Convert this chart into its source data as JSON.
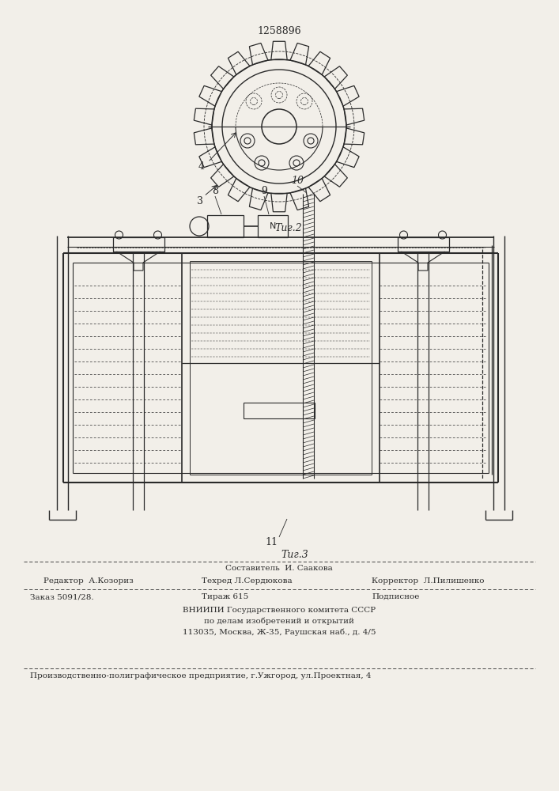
{
  "patent_number": "1258896",
  "fig2_label": "Τиг.2",
  "fig3_label": "Τиг.3",
  "label_3": "3",
  "label_4": "4",
  "label_8": "8",
  "label_9": "9",
  "label_10": "10",
  "label_11": "11",
  "bg_color": "#f2efe9",
  "line_color": "#2a2a2a",
  "footer_line1": "Составитель  И. Саакова",
  "footer_line2_left": "Редактор  А.Козориз",
  "footer_line2_mid": "Техред Л.Сердюкова",
  "footer_line2_right": "Корректор  Л.Пилишенко",
  "footer_line3_left": "Заказ 5091/28.",
  "footer_line3_mid": "Тираж 615",
  "footer_line3_right": "Подписное",
  "footer_line4": "ВНИИПИ Государственного комитета СССР",
  "footer_line5": "по делам изобретений и открытий",
  "footer_line6": "113035, Москва, Ж-35, Раушская наб., д. 4/5",
  "footer_line7": "Производственно-полиграфическое предприятие, г.Ужгород, ул.Проектная, 4"
}
